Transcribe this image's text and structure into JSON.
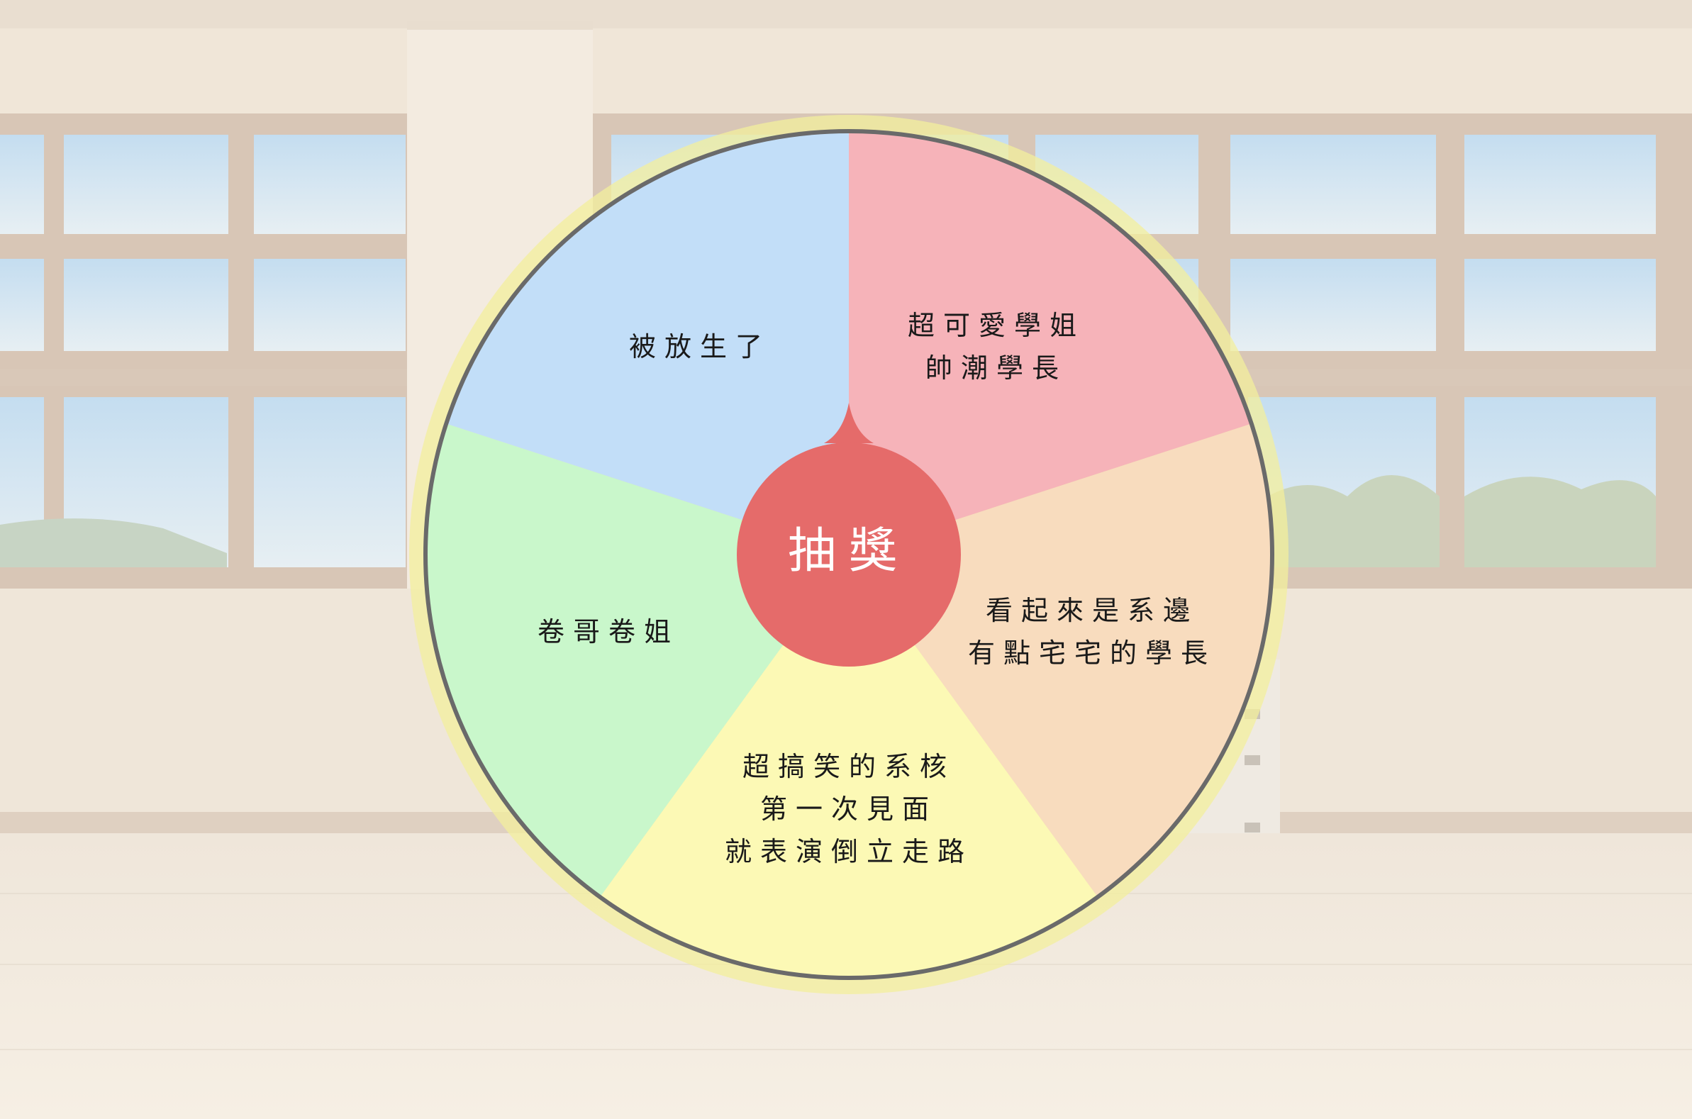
{
  "wheel": {
    "center_button_label": "抽獎",
    "segments": [
      {
        "lines": [
          "超可愛學姐",
          "帥潮學長"
        ],
        "color": "#f6b3b9"
      },
      {
        "lines": [
          "看起來是系邊",
          "有點宅宅的學長"
        ],
        "color": "#f8dcbe"
      },
      {
        "lines": [
          "超搞笑的系核",
          "第一次見面",
          "就表演倒立走路"
        ],
        "color": "#fcf9b5"
      },
      {
        "lines": [
          "卷哥卷姐"
        ],
        "color": "#c9f7cb"
      },
      {
        "lines": [
          "被放生了"
        ],
        "color": "#c2def8"
      }
    ],
    "colors": {
      "outer_ring": "#f3ef9c",
      "rim": "#6a6a6a",
      "button": "#e56b6a",
      "button_text": "#ffffff",
      "segment_text": "#1a1a1a"
    }
  }
}
